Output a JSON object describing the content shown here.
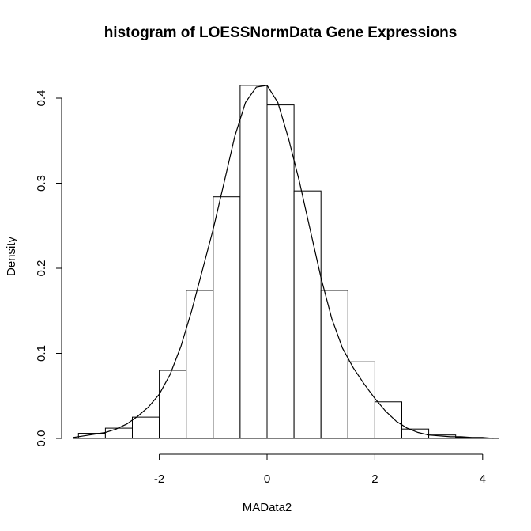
{
  "chart_data": {
    "type": "bar",
    "subtype": "histogram-with-density",
    "title": "histogram of LOESSNormData Gene Expressions",
    "xlabel": "MAData2",
    "ylabel": "Density",
    "xlim": [
      -3.6,
      4.3
    ],
    "ylim": [
      0,
      0.43
    ],
    "x_ticks": [
      -2,
      0,
      2,
      4
    ],
    "x_tick_labels": [
      "-2",
      "0",
      "2",
      "4"
    ],
    "y_ticks": [
      0,
      0.1,
      0.2,
      0.3,
      0.4
    ],
    "y_tick_labels": [
      "0.0",
      "0.1",
      "0.2",
      "0.3",
      "0.4"
    ],
    "bin_width": 0.5,
    "bins": [
      {
        "start": -3.5,
        "end": -3.0,
        "density": 0.006
      },
      {
        "start": -3.0,
        "end": -2.5,
        "density": 0.012
      },
      {
        "start": -2.5,
        "end": -2.0,
        "density": 0.025
      },
      {
        "start": -2.0,
        "end": -1.5,
        "density": 0.08
      },
      {
        "start": -1.5,
        "end": -1.0,
        "density": 0.174
      },
      {
        "start": -1.0,
        "end": -0.5,
        "density": 0.284
      },
      {
        "start": -0.5,
        "end": 0.0,
        "density": 0.415
      },
      {
        "start": 0.0,
        "end": 0.5,
        "density": 0.392
      },
      {
        "start": 0.5,
        "end": 1.0,
        "density": 0.291
      },
      {
        "start": 1.0,
        "end": 1.5,
        "density": 0.174
      },
      {
        "start": 1.5,
        "end": 2.0,
        "density": 0.09
      },
      {
        "start": 2.0,
        "end": 2.5,
        "density": 0.043
      },
      {
        "start": 2.5,
        "end": 3.0,
        "density": 0.011
      },
      {
        "start": 3.0,
        "end": 3.5,
        "density": 0.004
      },
      {
        "start": 3.5,
        "end": 4.0,
        "density": 0.001
      }
    ],
    "density_curve": {
      "x": [
        -3.6,
        -3.4,
        -3.2,
        -3.0,
        -2.8,
        -2.6,
        -2.4,
        -2.2,
        -2.0,
        -1.8,
        -1.6,
        -1.4,
        -1.2,
        -1.0,
        -0.8,
        -0.6,
        -0.4,
        -0.2,
        0.0,
        0.2,
        0.4,
        0.6,
        0.8,
        1.0,
        1.2,
        1.4,
        1.6,
        1.8,
        2.0,
        2.2,
        2.4,
        2.6,
        2.8,
        3.0,
        3.2,
        3.4,
        3.6,
        3.8,
        4.0,
        4.2
      ],
      "y": [
        0.001,
        0.003,
        0.005,
        0.007,
        0.011,
        0.017,
        0.026,
        0.037,
        0.052,
        0.075,
        0.108,
        0.15,
        0.198,
        0.246,
        0.3,
        0.355,
        0.395,
        0.413,
        0.415,
        0.395,
        0.352,
        0.302,
        0.245,
        0.189,
        0.141,
        0.106,
        0.083,
        0.064,
        0.047,
        0.032,
        0.02,
        0.012,
        0.007,
        0.004,
        0.003,
        0.002,
        0.002,
        0.001,
        0.001,
        0.0
      ]
    },
    "grid": false,
    "legend": "none"
  }
}
